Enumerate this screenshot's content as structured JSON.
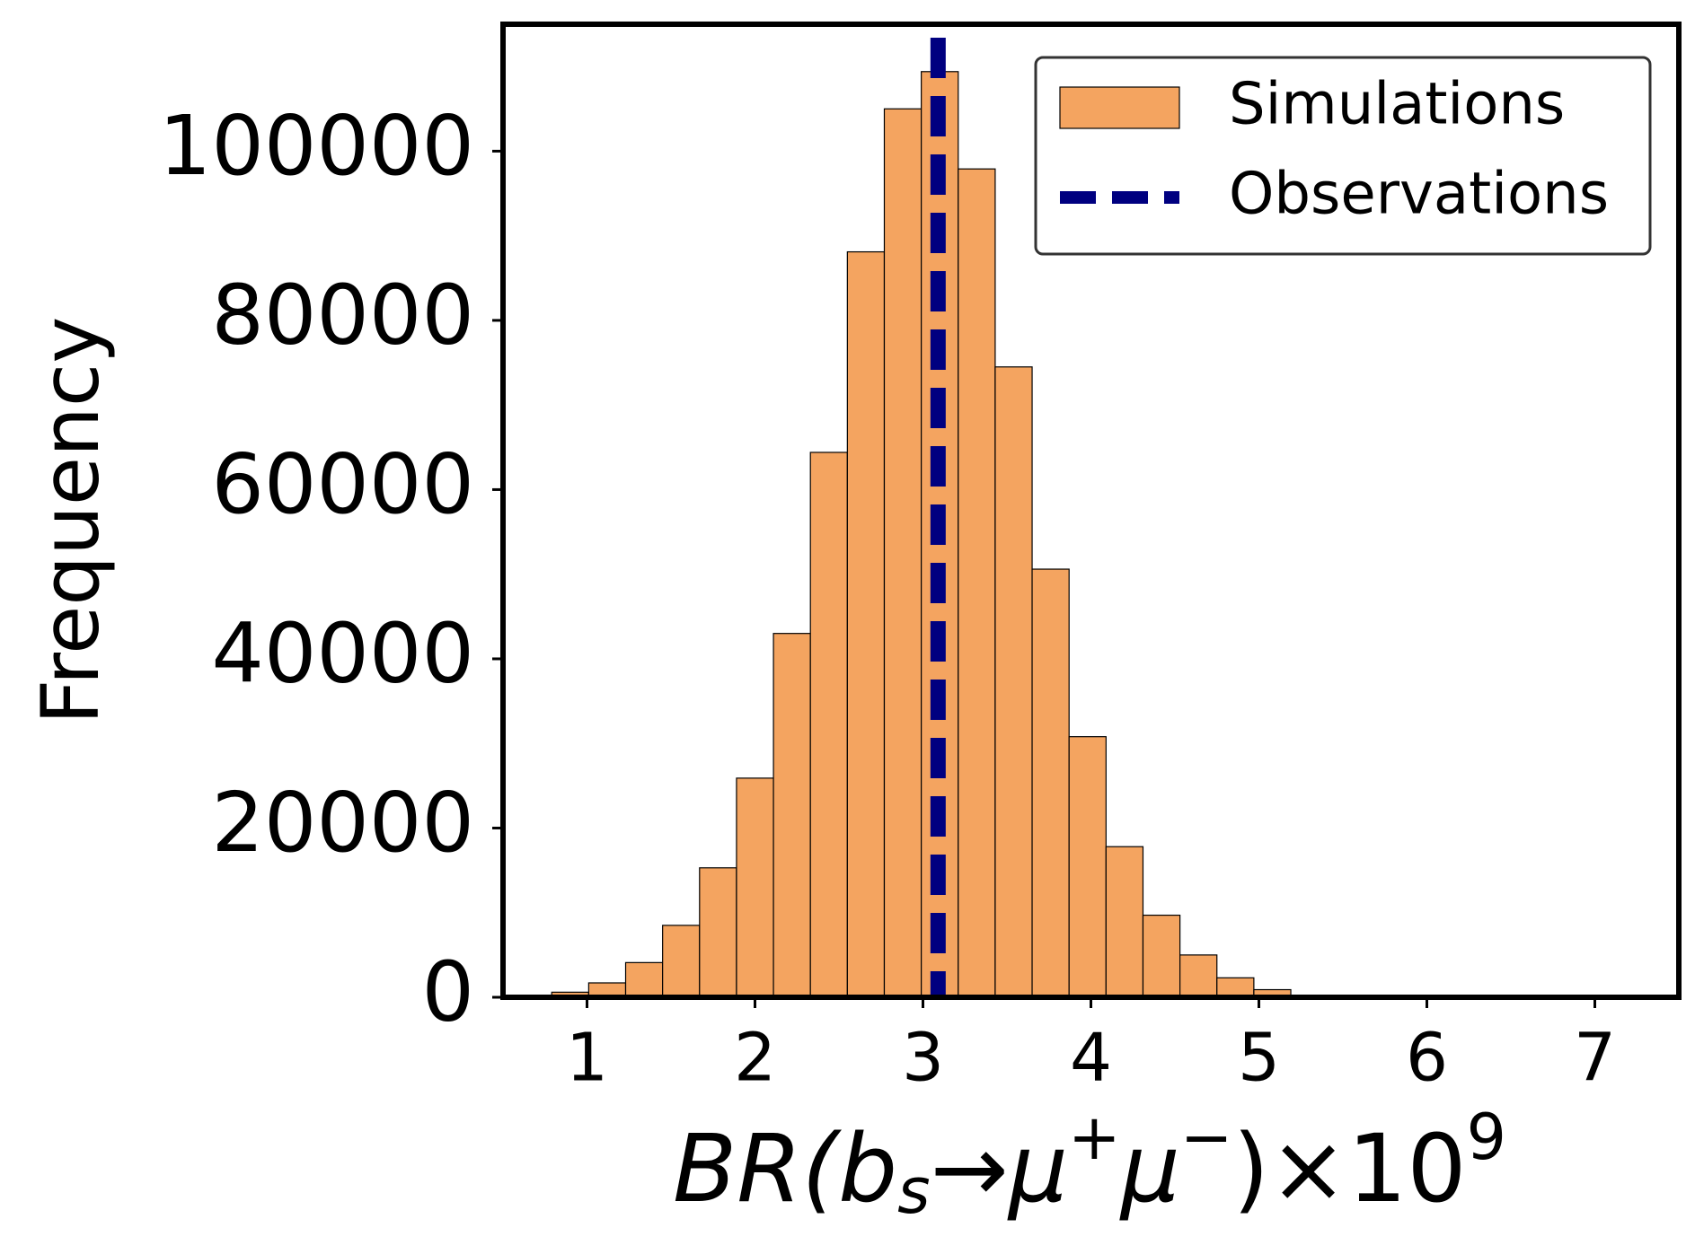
{
  "chart_data": {
    "type": "histogram",
    "xlabel": [
      "BR(b",
      "s",
      "→μ",
      "+",
      "μ",
      "−",
      ")×10",
      "9"
    ],
    "ylabel": "Frequency",
    "bins": [
      0.79,
      1.01,
      1.23,
      1.45,
      1.67,
      1.89,
      2.11,
      2.33,
      2.55,
      2.77,
      2.99,
      3.21,
      3.43,
      3.65,
      3.87,
      4.09,
      4.31,
      4.53,
      4.75,
      4.97,
      5.19,
      5.41,
      5.63,
      5.85,
      6.07,
      6.29,
      6.51,
      6.73,
      6.95,
      7.17,
      7.39
    ],
    "series": [
      {
        "name": "Simulations",
        "color": "#f4a460",
        "edgecolor": "#000000",
        "values": [
          600,
          1700,
          4100,
          8500,
          15300,
          25900,
          43000,
          64400,
          88100,
          105000,
          109400,
          97900,
          74500,
          50600,
          30800,
          17800,
          9700,
          5000,
          2300,
          900,
          250,
          100,
          40,
          20,
          10,
          5,
          3,
          2,
          1,
          1
        ]
      }
    ],
    "lines": [
      {
        "name": "Observations",
        "color": "#000080",
        "x": 3.09,
        "style": "dashed"
      }
    ],
    "xlim": [
      0.5,
      7.5
    ],
    "xticks": [
      1,
      2,
      3,
      4,
      5,
      6,
      7
    ],
    "ylim": [
      0,
      115000
    ],
    "yticks": [
      0,
      20000,
      40000,
      60000,
      80000,
      100000
    ],
    "legend": "upper right",
    "grid": false
  }
}
